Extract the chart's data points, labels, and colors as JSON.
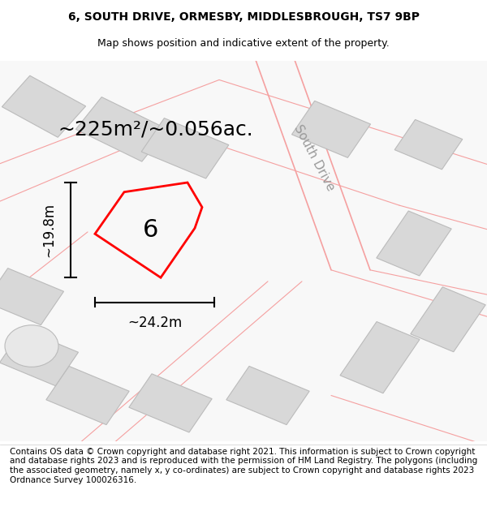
{
  "title_line1": "6, SOUTH DRIVE, ORMESBY, MIDDLESBROUGH, TS7 9BP",
  "title_line2": "Map shows position and indicative extent of the property.",
  "area_label": "~225m²/~0.056ac.",
  "road_label": "South Drive",
  "number_label": "6",
  "height_label": "~19.8m",
  "width_label": "~24.2m",
  "footer_text": "Contains OS data © Crown copyright and database right 2021. This information is subject to Crown copyright and database rights 2023 and is reproduced with the permission of HM Land Registry. The polygons (including the associated geometry, namely x, y co-ordinates) are subject to Crown copyright and database rights 2023 Ordnance Survey 100026316.",
  "bg_color": "#f5f5f5",
  "map_bg": "#ffffff",
  "plot_color": "#ff0000",
  "building_color": "#d8d8d8",
  "building_edge": "#bbbbbb",
  "road_line_color": "#f5a0a0",
  "dim_line_color": "#000000",
  "title_fontsize": 10,
  "subtitle_fontsize": 9,
  "area_fontsize": 18,
  "label_fontsize": 13,
  "number_fontsize": 22,
  "road_fontsize": 11,
  "footer_fontsize": 7.5
}
